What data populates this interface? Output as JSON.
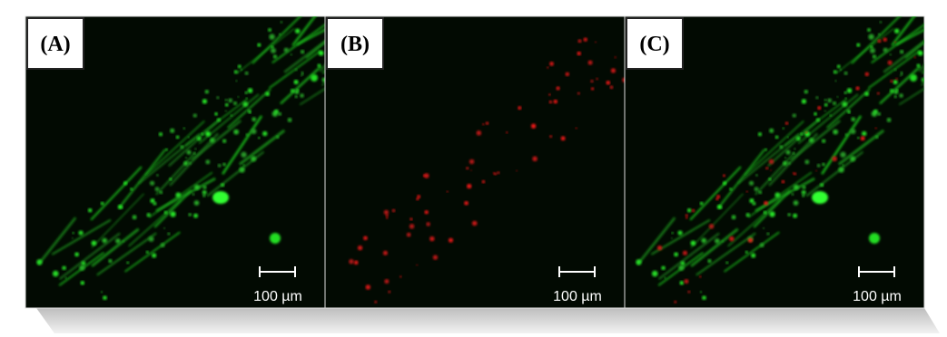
{
  "panels": [
    {
      "label": "(A)",
      "scale_bar": "100 µm"
    },
    {
      "label": "(B)",
      "scale_bar": "100 µm"
    },
    {
      "label": "(C)",
      "scale_bar": "100 µm"
    }
  ]
}
